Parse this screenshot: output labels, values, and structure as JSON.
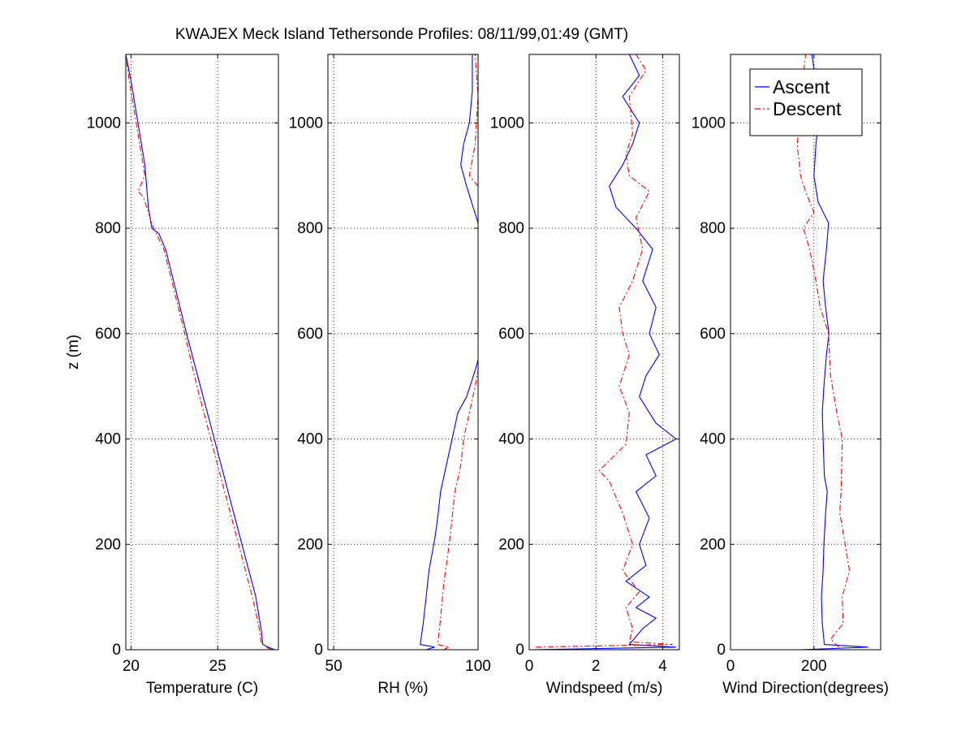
{
  "figure": {
    "title": "KWAJEX Meck Island Tethersonde Profiles: 08/11/99,01:49 (GMT)"
  },
  "legend": {
    "placement": "top-right of fourth panel",
    "entries": [
      {
        "label": "Ascent",
        "color": "#0000ff",
        "dash": "solid"
      },
      {
        "label": "Descent",
        "color": "#ff0000",
        "dash": "dashdot"
      }
    ]
  },
  "chart_data": [
    {
      "type": "line",
      "xlabel": "Temperature (C)",
      "ylabel": "z (m)",
      "xlim": [
        19.7,
        28.5
      ],
      "ylim": [
        0,
        1130
      ],
      "xticks": [
        20,
        25
      ],
      "yticks": [
        0,
        200,
        400,
        600,
        800,
        1000
      ],
      "grid": true,
      "series": [
        {
          "name": "Ascent",
          "color": "#0000ff",
          "points": [
            [
              28.3,
              0
            ],
            [
              27.9,
              5
            ],
            [
              27.6,
              10
            ],
            [
              27.5,
              40
            ],
            [
              27.2,
              100
            ],
            [
              26.4,
              200
            ],
            [
              25.6,
              300
            ],
            [
              24.8,
              400
            ],
            [
              24.0,
              500
            ],
            [
              23.2,
              600
            ],
            [
              22.6,
              680
            ],
            [
              22.0,
              760
            ],
            [
              21.6,
              790
            ],
            [
              21.2,
              800
            ],
            [
              21.0,
              840
            ],
            [
              20.9,
              880
            ],
            [
              20.8,
              920
            ],
            [
              20.4,
              1000
            ],
            [
              20.0,
              1080
            ],
            [
              19.7,
              1130
            ]
          ]
        },
        {
          "name": "Descent",
          "color": "#ff0000",
          "points": [
            [
              28.1,
              0
            ],
            [
              27.8,
              5
            ],
            [
              27.5,
              15
            ],
            [
              27.4,
              40
            ],
            [
              27.0,
              100
            ],
            [
              26.2,
              200
            ],
            [
              25.4,
              300
            ],
            [
              24.6,
              400
            ],
            [
              23.8,
              500
            ],
            [
              23.1,
              600
            ],
            [
              22.5,
              680
            ],
            [
              21.9,
              760
            ],
            [
              21.3,
              800
            ],
            [
              20.7,
              860
            ],
            [
              20.4,
              870
            ],
            [
              20.8,
              900
            ],
            [
              20.6,
              940
            ],
            [
              20.3,
              1000
            ],
            [
              19.9,
              1080
            ],
            [
              19.6,
              1130
            ]
          ]
        }
      ]
    },
    {
      "type": "line",
      "xlabel": "RH (%)",
      "xlim": [
        48,
        100
      ],
      "ylim": [
        0,
        1130
      ],
      "xticks": [
        50,
        100
      ],
      "yticks": [
        0,
        200,
        400,
        600,
        800,
        1000
      ],
      "grid": true,
      "series": [
        {
          "name": "Ascent",
          "color": "#0000ff",
          "points": [
            [
              82,
              0
            ],
            [
              85,
              5
            ],
            [
              80,
              10
            ],
            [
              81,
              50
            ],
            [
              82,
              100
            ],
            [
              83,
              150
            ],
            [
              85,
              210
            ],
            [
              86,
              250
            ],
            [
              87,
              300
            ],
            [
              89,
              350
            ],
            [
              91,
              400
            ],
            [
              93,
              450
            ],
            [
              96,
              480
            ],
            [
              99,
              530
            ],
            [
              100,
              550
            ],
            [
              null,
              null
            ],
            [
              100,
              810
            ],
            [
              96,
              880
            ],
            [
              94,
              920
            ],
            [
              95,
              960
            ],
            [
              97,
              1000
            ],
            [
              98,
              1060
            ],
            [
              98,
              1130
            ]
          ]
        },
        {
          "name": "Descent",
          "color": "#ff0000",
          "points": [
            [
              88,
              0
            ],
            [
              90,
              5
            ],
            [
              86,
              10
            ],
            [
              87,
              60
            ],
            [
              88,
              120
            ],
            [
              90,
              200
            ],
            [
              91,
              250
            ],
            [
              92,
              300
            ],
            [
              94,
              350
            ],
            [
              95,
              400
            ],
            [
              97,
              450
            ],
            [
              99,
              500
            ],
            [
              100,
              530
            ],
            [
              null,
              null
            ],
            [
              100,
              880
            ],
            [
              97,
              900
            ],
            [
              99,
              960
            ],
            [
              100,
              1050
            ],
            [
              99,
              1130
            ]
          ]
        }
      ]
    },
    {
      "type": "line",
      "xlabel": "Windspeed (m/s)",
      "xlim": [
        0,
        4.5
      ],
      "ylim": [
        0,
        1130
      ],
      "xticks": [
        0,
        2,
        4
      ],
      "yticks": [
        0,
        200,
        400,
        600,
        800,
        1000
      ],
      "grid": true,
      "series": [
        {
          "name": "Ascent",
          "color": "#0000ff",
          "points": [
            [
              0.1,
              0
            ],
            [
              4.4,
              5
            ],
            [
              3.0,
              10
            ],
            [
              3.4,
              40
            ],
            [
              3.8,
              60
            ],
            [
              3.2,
              80
            ],
            [
              3.6,
              100
            ],
            [
              2.9,
              130
            ],
            [
              3.5,
              160
            ],
            [
              3.3,
              200
            ],
            [
              3.6,
              250
            ],
            [
              3.2,
              300
            ],
            [
              3.8,
              330
            ],
            [
              3.5,
              370
            ],
            [
              4.4,
              400
            ],
            [
              3.8,
              430
            ],
            [
              3.3,
              480
            ],
            [
              3.5,
              520
            ],
            [
              3.9,
              560
            ],
            [
              3.6,
              600
            ],
            [
              3.8,
              650
            ],
            [
              3.4,
              700
            ],
            [
              3.7,
              760
            ],
            [
              3.2,
              800
            ],
            [
              2.6,
              840
            ],
            [
              2.4,
              880
            ],
            [
              2.8,
              920
            ],
            [
              3.1,
              960
            ],
            [
              3.3,
              1000
            ],
            [
              2.8,
              1050
            ],
            [
              3.3,
              1090
            ],
            [
              3.0,
              1130
            ]
          ]
        },
        {
          "name": "Descent",
          "color": "#ff0000",
          "points": [
            [
              0.2,
              5
            ],
            [
              4.3,
              10
            ],
            [
              3.0,
              15
            ],
            [
              3.1,
              40
            ],
            [
              2.9,
              80
            ],
            [
              3.3,
              110
            ],
            [
              2.8,
              150
            ],
            [
              3.1,
              200
            ],
            [
              2.8,
              260
            ],
            [
              2.4,
              320
            ],
            [
              2.1,
              340
            ],
            [
              2.9,
              390
            ],
            [
              3.0,
              450
            ],
            [
              2.7,
              500
            ],
            [
              3.0,
              560
            ],
            [
              2.8,
              600
            ],
            [
              2.7,
              650
            ],
            [
              3.1,
              700
            ],
            [
              3.4,
              760
            ],
            [
              3.2,
              820
            ],
            [
              3.6,
              870
            ],
            [
              3.0,
              900
            ],
            [
              2.9,
              940
            ],
            [
              3.1,
              980
            ],
            [
              3.0,
              1050
            ],
            [
              3.5,
              1100
            ],
            [
              3.2,
              1130
            ]
          ]
        }
      ]
    },
    {
      "type": "line",
      "xlabel": "Wind Direction(degrees)",
      "xlim": [
        0,
        360
      ],
      "ylim": [
        0,
        1130
      ],
      "xticks": [
        0,
        200
      ],
      "yticks": [
        0,
        200,
        400,
        600,
        800,
        1000
      ],
      "grid": true,
      "series": [
        {
          "name": "Ascent",
          "color": "#0000ff",
          "points": [
            [
              170,
              0
            ],
            [
              330,
              5
            ],
            [
              225,
              10
            ],
            [
              220,
              50
            ],
            [
              218,
              100
            ],
            [
              222,
              150
            ],
            [
              224,
              200
            ],
            [
              228,
              260
            ],
            [
              232,
              300
            ],
            [
              225,
              330
            ],
            [
              222,
              400
            ],
            [
              220,
              450
            ],
            [
              224,
              500
            ],
            [
              230,
              560
            ],
            [
              236,
              600
            ],
            [
              228,
              650
            ],
            [
              222,
              700
            ],
            [
              230,
              760
            ],
            [
              235,
              810
            ],
            [
              210,
              850
            ],
            [
              200,
              900
            ],
            [
              205,
              960
            ],
            [
              210,
              1000
            ],
            [
              210,
              1050
            ],
            [
              195,
              1130
            ]
          ]
        },
        {
          "name": "Descent",
          "color": "#ff0000",
          "points": [
            [
              260,
              5
            ],
            [
              240,
              20
            ],
            [
              270,
              50
            ],
            [
              268,
              100
            ],
            [
              285,
              150
            ],
            [
              275,
              200
            ],
            [
              262,
              260
            ],
            [
              265,
              300
            ],
            [
              268,
              400
            ],
            [
              255,
              450
            ],
            [
              240,
              520
            ],
            [
              235,
              600
            ],
            [
              215,
              650
            ],
            [
              205,
              700
            ],
            [
              190,
              760
            ],
            [
              175,
              800
            ],
            [
              200,
              830
            ],
            [
              180,
              870
            ],
            [
              168,
              900
            ],
            [
              160,
              960
            ],
            [
              165,
              1000
            ],
            [
              170,
              1050
            ],
            [
              180,
              1130
            ]
          ]
        }
      ]
    }
  ]
}
